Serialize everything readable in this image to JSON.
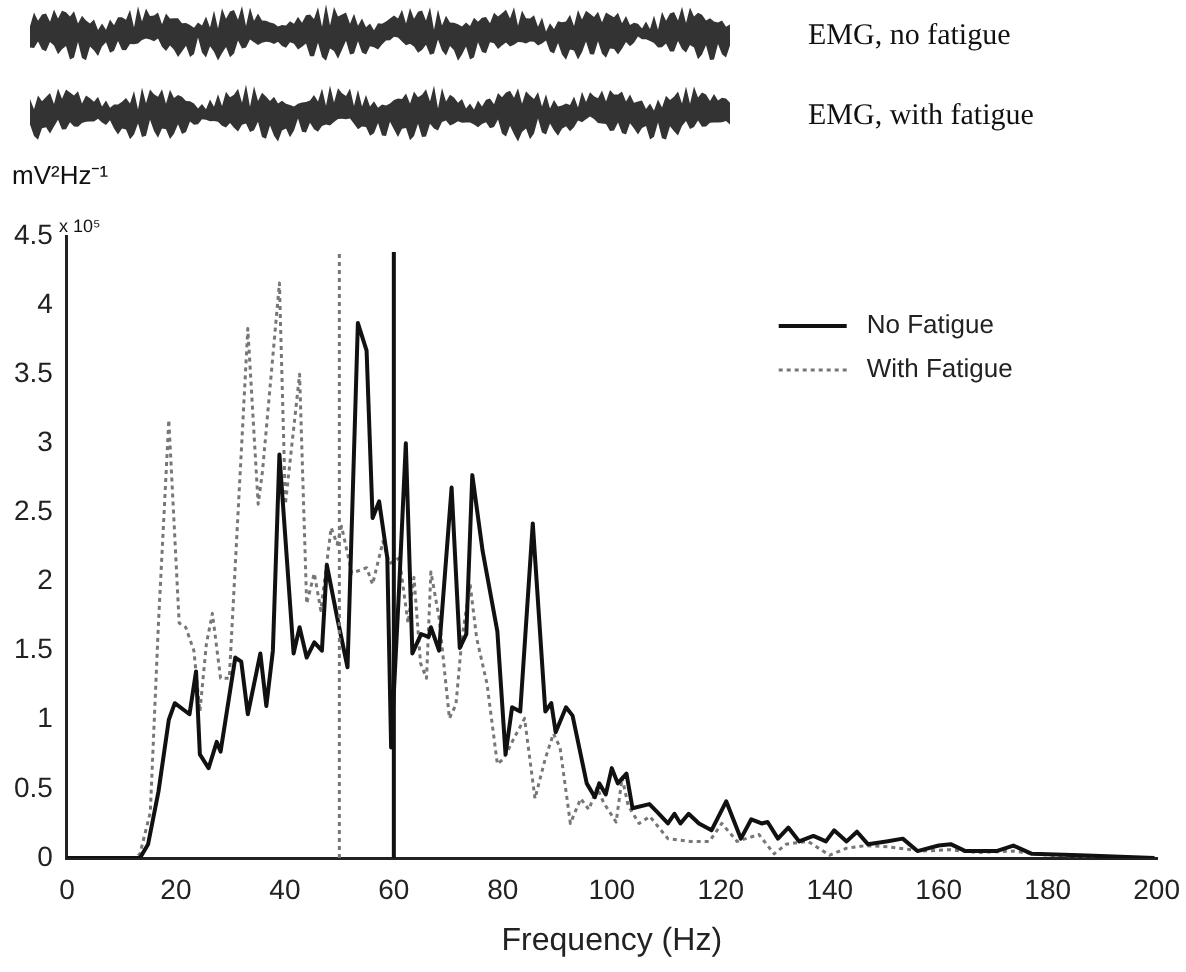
{
  "chart_data": {
    "type": "line",
    "xlabel": "Frequency (Hz)",
    "ylabel": "mV²Hz⁻¹",
    "annotations": [
      "EMG, no fatigue",
      "EMG, with fatigue",
      "x 10⁵"
    ],
    "xlim": [
      0,
      200
    ],
    "xticks": [
      0,
      20,
      40,
      60,
      80,
      100,
      120,
      140,
      160,
      180,
      200
    ],
    "ylim": [
      0,
      4.5
    ],
    "yticks": [
      0,
      0.5,
      1,
      1.5,
      2,
      2.5,
      3,
      3.5,
      4,
      4.5
    ],
    "grid": false,
    "legend": "top right",
    "marker": "none",
    "ref_lines": [
      {
        "axis": "x",
        "value": 50,
        "color": "#777777",
        "line_style": "dotted"
      },
      {
        "axis": "x",
        "value": 60,
        "color": "#111111",
        "line_style": "solid"
      }
    ],
    "series": [
      {
        "name": "No Fatigue",
        "color": "#111111",
        "line_style": "solid",
        "x": [
          0,
          13.4,
          14.9,
          16.8,
          18.7,
          19.8,
          22.5,
          23.7,
          24.4,
          26,
          27.5,
          28.2,
          30.9,
          32,
          33.2,
          35.5,
          36.6,
          37.8,
          39,
          41.6,
          42.7,
          44,
          45.4,
          46.8,
          47.7,
          49.6,
          51.5,
          53.4,
          55,
          56.1,
          57.3,
          58.8,
          59.5,
          61,
          62.2,
          63.4,
          65,
          66.4,
          66.8,
          68.3,
          70.6,
          72.1,
          73.3,
          74.4,
          76.3,
          79,
          80.5,
          81.7,
          83.2,
          85.5,
          87.8,
          88.9,
          89.7,
          91.6,
          92.8,
          95.4,
          96.9,
          97.7,
          98.9,
          100,
          101.1,
          102.7,
          103.8,
          106.9,
          108.4,
          110.3,
          111.5,
          112.6,
          114.1,
          116,
          118.3,
          121,
          123.7,
          125.6,
          127.5,
          128.6,
          130.5,
          132.4,
          134.4,
          137,
          139.3,
          140.8,
          143.1,
          145,
          147,
          150.4,
          153.4,
          156.1,
          160,
          162.2,
          164.9,
          170.6,
          173.7,
          177.1,
          185.9,
          199.6
        ],
        "values": [
          0,
          0,
          0.1,
          0.48,
          1,
          1.12,
          1.04,
          1.35,
          0.75,
          0.65,
          0.84,
          0.77,
          1.45,
          1.42,
          1.04,
          1.48,
          1.1,
          1.5,
          2.92,
          1.48,
          1.67,
          1.45,
          1.56,
          1.5,
          2.12,
          1.74,
          1.38,
          3.87,
          3.67,
          2.46,
          2.58,
          2.17,
          0.8,
          1.98,
          3,
          1.48,
          1.62,
          1.6,
          1.67,
          1.5,
          2.68,
          1.52,
          1.62,
          2.77,
          2.22,
          1.64,
          0.75,
          1.09,
          1.06,
          2.42,
          1.06,
          1.12,
          0.91,
          1.09,
          1.03,
          0.54,
          0.44,
          0.54,
          0.46,
          0.65,
          0.54,
          0.61,
          0.36,
          0.39,
          0.33,
          0.25,
          0.32,
          0.25,
          0.32,
          0.25,
          0.2,
          0.41,
          0.14,
          0.28,
          0.25,
          0.26,
          0.14,
          0.22,
          0.12,
          0.16,
          0.12,
          0.2,
          0.12,
          0.19,
          0.1,
          0.12,
          0.14,
          0.05,
          0.09,
          0.1,
          0.05,
          0.05,
          0.09,
          0.03,
          0.02,
          0
        ]
      },
      {
        "name": "With Fatigue",
        "color": "#777777",
        "line_style": "dotted",
        "x": [
          0,
          12.5,
          13.4,
          15.3,
          16.8,
          18.7,
          20.6,
          21.8,
          23.3,
          24.4,
          25.6,
          26.7,
          28.2,
          29.8,
          33.2,
          35.1,
          35.9,
          39,
          40.1,
          42.7,
          44,
          45.4,
          46.6,
          48.5,
          49.6,
          50.4,
          52.3,
          55,
          56.1,
          58,
          59.2,
          61,
          62.6,
          63.7,
          64.9,
          66,
          66.8,
          68.3,
          70.2,
          71.4,
          72.5,
          74,
          75.2,
          77.1,
          79,
          80.2,
          82.1,
          84,
          85.9,
          87.8,
          89.3,
          90.5,
          92.4,
          94.3,
          95.8,
          97.3,
          98.5,
          100.8,
          101.9,
          103,
          105,
          107,
          110.3,
          114.5,
          117.9,
          120.2,
          123,
          127,
          129.8,
          132,
          136,
          140,
          143,
          146.6,
          151,
          157,
          162,
          167,
          173.7,
          180,
          199.6
        ],
        "values": [
          0,
          0,
          0.03,
          0.33,
          1.7,
          3.17,
          1.7,
          1.67,
          1.5,
          1.06,
          1.55,
          1.77,
          1.3,
          1.3,
          3.83,
          2.56,
          2.8,
          4.16,
          2.56,
          3.5,
          1.84,
          2.06,
          1.79,
          2.39,
          2.27,
          2.4,
          2.06,
          2.1,
          1.98,
          2.29,
          2.13,
          2.17,
          1.7,
          2.03,
          1.41,
          1.3,
          2.07,
          1.74,
          1.01,
          1.11,
          1.59,
          1.98,
          1.59,
          1.26,
          0.68,
          0.72,
          0.87,
          1.01,
          0.43,
          0.72,
          0.9,
          0.8,
          0.25,
          0.43,
          0.35,
          0.51,
          0.4,
          0.26,
          0.58,
          0.38,
          0.25,
          0.3,
          0.14,
          0.12,
          0.12,
          0.25,
          0.12,
          0.17,
          0.03,
          0.1,
          0.12,
          0.02,
          0.07,
          0.09,
          0.08,
          0.05,
          0.06,
          0.04,
          0.05,
          0.02,
          0
        ]
      }
    ]
  }
}
